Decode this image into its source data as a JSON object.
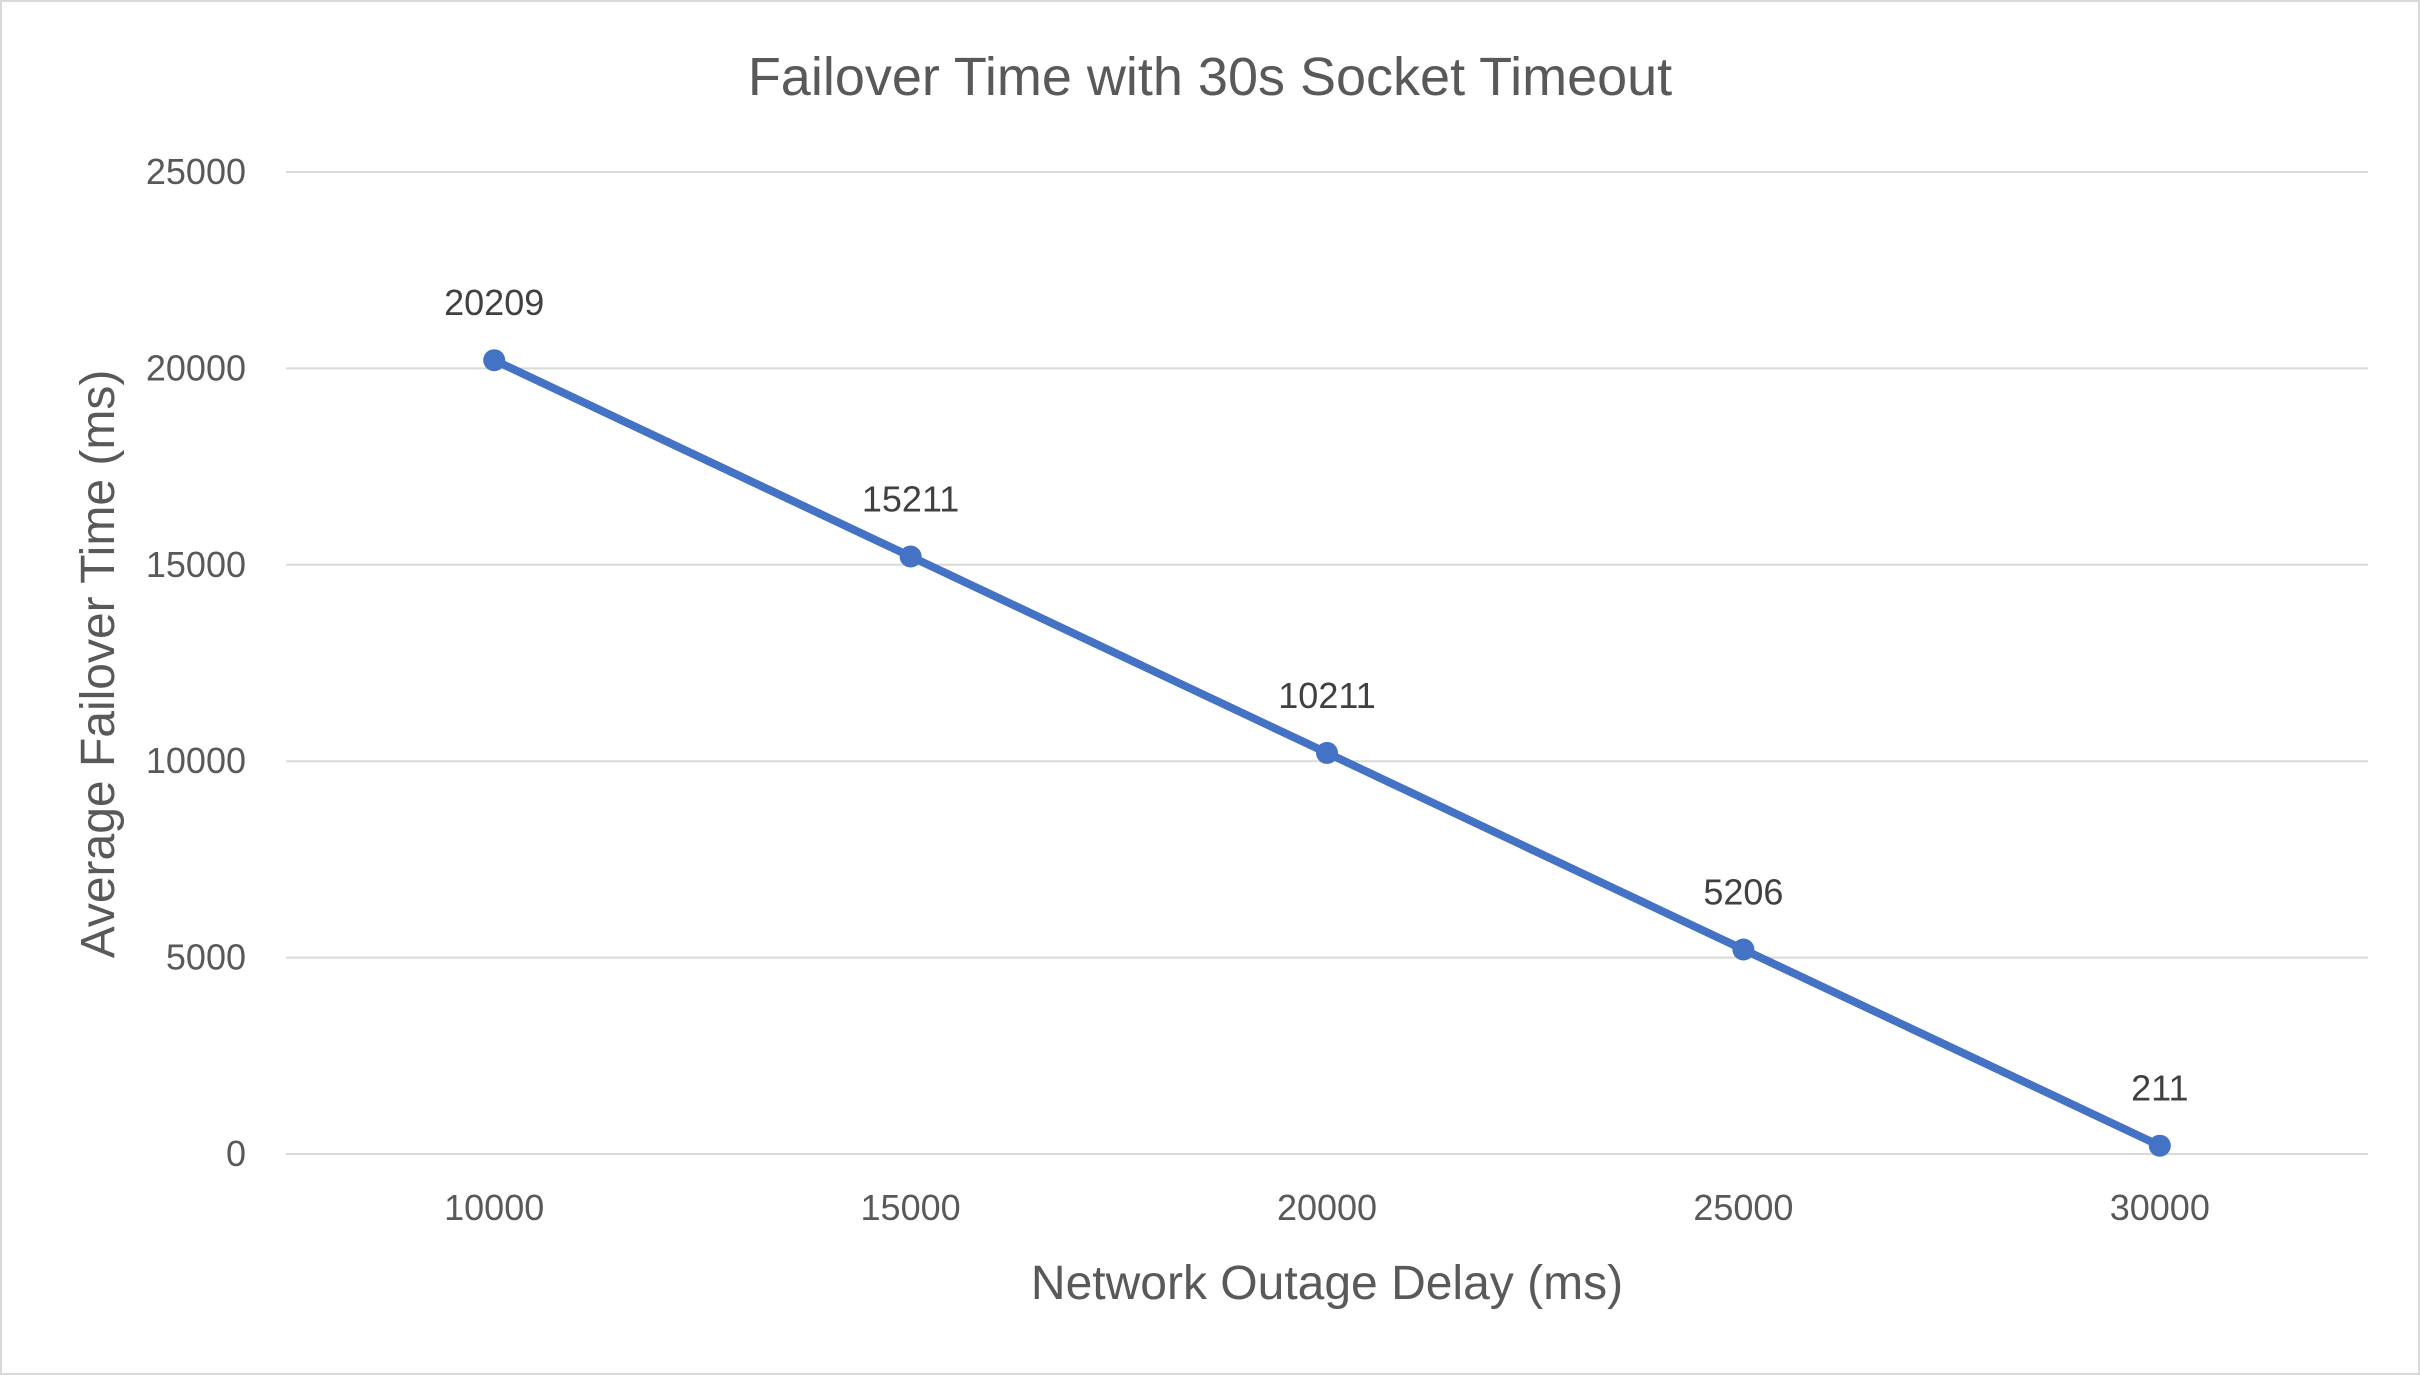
{
  "chart_data": {
    "type": "line",
    "title": "Failover Time with 30s Socket Timeout",
    "xlabel": "Network Outage Delay (ms)",
    "ylabel": "Average Failover Time (ms)",
    "categories": [
      "10000",
      "15000",
      "20000",
      "25000",
      "30000"
    ],
    "series": [
      {
        "values": [
          20209,
          15211,
          10211,
          5206,
          211
        ],
        "data_labels": [
          "20209",
          "15211",
          "10211",
          "5206",
          "211"
        ]
      }
    ],
    "y_ticks": [
      "0",
      "5000",
      "10000",
      "15000",
      "20000",
      "25000"
    ],
    "ylim": [
      0,
      25000
    ],
    "grid": true,
    "legend": "none",
    "colors": {
      "series": "#4472c4",
      "grid": "#d9d9d9",
      "text": "#595959"
    }
  }
}
